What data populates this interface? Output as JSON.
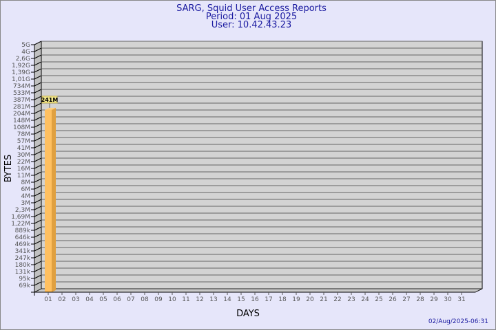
{
  "chart_data": {
    "type": "bar",
    "title": "SARG, Squid User Access Reports",
    "subtitle": "Period: 01 Aug 2025",
    "subtitle2": "User: 10.42.43.23",
    "xlabel": "DAYS",
    "ylabel": "BYTES",
    "yscale": "log",
    "y_tick_labels": [
      "5G",
      "4G",
      "2,6G",
      "1,92G",
      "1,39G",
      "1,01G",
      "734M",
      "533M",
      "387M",
      "281M",
      "204M",
      "148M",
      "108M",
      "78M",
      "57M",
      "41M",
      "30M",
      "22M",
      "16M",
      "11M",
      "8M",
      "6M",
      "4M",
      "3M",
      "2,3M",
      "1,69M",
      "1,22M",
      "889k",
      "646k",
      "469k",
      "341k",
      "247k",
      "180k",
      "131k",
      "95k",
      "69k"
    ],
    "ylim": [
      69000,
      5000000000
    ],
    "categories": [
      "01",
      "02",
      "03",
      "04",
      "05",
      "06",
      "07",
      "08",
      "09",
      "10",
      "11",
      "12",
      "13",
      "14",
      "15",
      "16",
      "17",
      "18",
      "19",
      "20",
      "21",
      "22",
      "23",
      "24",
      "25",
      "26",
      "27",
      "28",
      "29",
      "30",
      "31"
    ],
    "bars": [
      {
        "category": "01",
        "value": 241000000,
        "label": "241M"
      }
    ],
    "grid": true,
    "colors": {
      "background": "#e6e6fa",
      "wall": "#d3d3d3",
      "side_wall": "#c0c0c0",
      "bar": "#ffc060",
      "bar_side": "#e0a040",
      "title": "#1a1aa0",
      "label_box": "#f0e68c"
    }
  },
  "footer": {
    "timestamp": "02/Aug/2025-06:31"
  }
}
